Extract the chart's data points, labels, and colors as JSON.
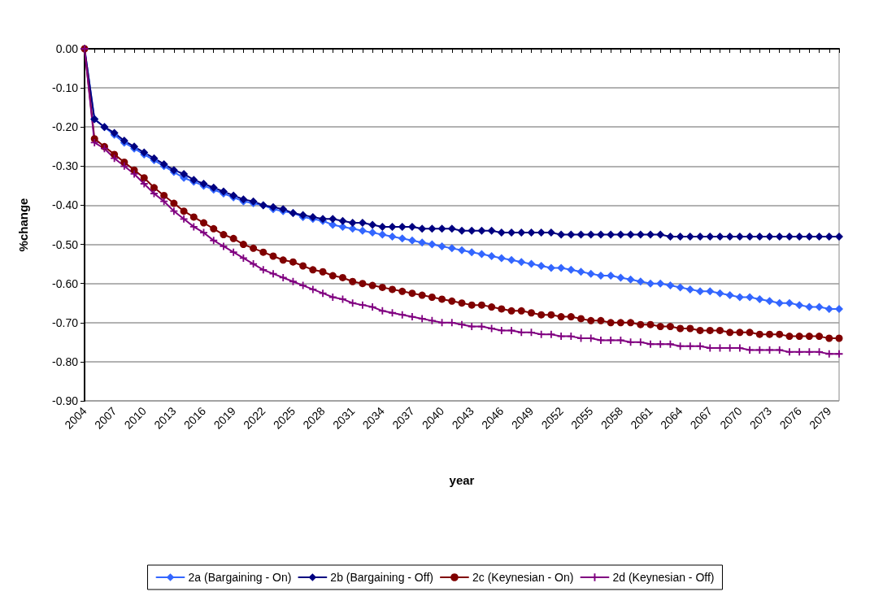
{
  "chart_data": {
    "type": "line",
    "xlabel": "year",
    "ylabel": "%change",
    "categories": [
      "2004",
      null,
      null,
      "2007",
      null,
      null,
      "2010",
      null,
      null,
      "2013",
      null,
      null,
      "2016",
      null,
      null,
      "2019",
      null,
      null,
      "2022",
      null,
      null,
      "2025",
      null,
      null,
      "2028",
      null,
      null,
      "2031",
      null,
      null,
      "2034",
      null,
      null,
      "2037",
      null,
      null,
      "2040",
      null,
      null,
      "2043",
      null,
      null,
      "2046",
      null,
      null,
      "2049",
      null,
      null,
      "2052",
      null,
      null,
      "2055",
      null,
      null,
      "2058",
      null,
      null,
      "2061",
      null,
      null,
      "2064",
      null,
      null,
      "2067",
      null,
      null,
      "2070",
      null,
      null,
      "2073",
      null,
      null,
      "2076",
      null,
      null,
      "2079",
      null
    ],
    "ylim": [
      -0.9,
      0
    ],
    "yticks": [
      {
        "value": 0,
        "label": "0.00"
      },
      {
        "value": -0.1,
        "label": "-0.10"
      },
      {
        "value": -0.2,
        "label": "-0.20"
      },
      {
        "value": -0.3,
        "label": "-0.30"
      },
      {
        "value": -0.4,
        "label": "-0.40"
      },
      {
        "value": -0.5,
        "label": "-0.50"
      },
      {
        "value": -0.6,
        "label": "-0.60"
      },
      {
        "value": -0.7,
        "label": "-0.70"
      },
      {
        "value": -0.8,
        "label": "-0.80"
      },
      {
        "value": -0.9,
        "label": "-0.90"
      }
    ],
    "grid": "y",
    "legend": "bottom",
    "line_style": "solid",
    "series": [
      {
        "name": "2a (Bargaining - On)",
        "color": "#3366ff",
        "marker": "diamond",
        "values": [
          0,
          -0.18,
          -0.2,
          -0.22,
          -0.24,
          -0.255,
          -0.27,
          -0.285,
          -0.3,
          -0.315,
          -0.33,
          -0.34,
          -0.35,
          -0.36,
          -0.37,
          -0.38,
          -0.39,
          -0.395,
          -0.4,
          -0.41,
          -0.415,
          -0.42,
          -0.43,
          -0.435,
          -0.44,
          -0.45,
          -0.455,
          -0.46,
          -0.465,
          -0.47,
          -0.475,
          -0.48,
          -0.485,
          -0.49,
          -0.495,
          -0.5,
          -0.505,
          -0.51,
          -0.515,
          -0.52,
          -0.525,
          -0.53,
          -0.535,
          -0.54,
          -0.545,
          -0.55,
          -0.555,
          -0.56,
          -0.56,
          -0.565,
          -0.57,
          -0.575,
          -0.58,
          -0.58,
          -0.585,
          -0.59,
          -0.595,
          -0.6,
          -0.6,
          -0.605,
          -0.61,
          -0.615,
          -0.62,
          -0.62,
          -0.625,
          -0.63,
          -0.635,
          -0.635,
          -0.64,
          -0.645,
          -0.65,
          -0.65,
          -0.655,
          -0.66,
          -0.66,
          -0.665,
          -0.665
        ]
      },
      {
        "name": "2b (Bargaining - Off)",
        "color": "#000080",
        "marker": "diamond",
        "values": [
          0,
          -0.18,
          -0.2,
          -0.215,
          -0.235,
          -0.25,
          -0.265,
          -0.28,
          -0.295,
          -0.31,
          -0.32,
          -0.335,
          -0.345,
          -0.355,
          -0.365,
          -0.375,
          -0.385,
          -0.39,
          -0.4,
          -0.405,
          -0.41,
          -0.42,
          -0.425,
          -0.43,
          -0.435,
          -0.435,
          -0.44,
          -0.445,
          -0.445,
          -0.45,
          -0.455,
          -0.455,
          -0.455,
          -0.455,
          -0.46,
          -0.46,
          -0.46,
          -0.46,
          -0.465,
          -0.465,
          -0.465,
          -0.465,
          -0.47,
          -0.47,
          -0.47,
          -0.47,
          -0.47,
          -0.47,
          -0.475,
          -0.475,
          -0.475,
          -0.475,
          -0.475,
          -0.475,
          -0.475,
          -0.475,
          -0.475,
          -0.475,
          -0.475,
          -0.48,
          -0.48,
          -0.48,
          -0.48,
          -0.48,
          -0.48,
          -0.48,
          -0.48,
          -0.48,
          -0.48,
          -0.48,
          -0.48,
          -0.48,
          -0.48,
          -0.48,
          -0.48,
          -0.48,
          -0.48
        ]
      },
      {
        "name": "2c (Keynesian - On)",
        "color": "#800000",
        "marker": "circle",
        "values": [
          0,
          -0.23,
          -0.25,
          -0.27,
          -0.29,
          -0.31,
          -0.33,
          -0.355,
          -0.375,
          -0.395,
          -0.415,
          -0.43,
          -0.445,
          -0.46,
          -0.475,
          -0.485,
          -0.5,
          -0.51,
          -0.52,
          -0.53,
          -0.54,
          -0.545,
          -0.555,
          -0.565,
          -0.57,
          -0.58,
          -0.585,
          -0.595,
          -0.6,
          -0.605,
          -0.61,
          -0.615,
          -0.62,
          -0.625,
          -0.63,
          -0.635,
          -0.64,
          -0.645,
          -0.65,
          -0.655,
          -0.655,
          -0.66,
          -0.665,
          -0.67,
          -0.67,
          -0.675,
          -0.68,
          -0.68,
          -0.685,
          -0.685,
          -0.69,
          -0.695,
          -0.695,
          -0.7,
          -0.7,
          -0.7,
          -0.705,
          -0.705,
          -0.71,
          -0.71,
          -0.715,
          -0.715,
          -0.72,
          -0.72,
          -0.72,
          -0.725,
          -0.725,
          -0.725,
          -0.73,
          -0.73,
          -0.73,
          -0.735,
          -0.735,
          -0.735,
          -0.735,
          -0.74,
          -0.74
        ]
      },
      {
        "name": "2d (Keynesian - Off)",
        "color": "#800080",
        "marker": "cross",
        "values": [
          0,
          -0.24,
          -0.255,
          -0.28,
          -0.3,
          -0.32,
          -0.345,
          -0.37,
          -0.39,
          -0.415,
          -0.435,
          -0.455,
          -0.47,
          -0.49,
          -0.505,
          -0.52,
          -0.535,
          -0.55,
          -0.565,
          -0.575,
          -0.585,
          -0.595,
          -0.605,
          -0.615,
          -0.625,
          -0.635,
          -0.64,
          -0.65,
          -0.655,
          -0.66,
          -0.67,
          -0.675,
          -0.68,
          -0.685,
          -0.69,
          -0.695,
          -0.7,
          -0.7,
          -0.705,
          -0.71,
          -0.71,
          -0.715,
          -0.72,
          -0.72,
          -0.725,
          -0.725,
          -0.73,
          -0.73,
          -0.735,
          -0.735,
          -0.74,
          -0.74,
          -0.745,
          -0.745,
          -0.745,
          -0.75,
          -0.75,
          -0.755,
          -0.755,
          -0.755,
          -0.76,
          -0.76,
          -0.76,
          -0.765,
          -0.765,
          -0.765,
          -0.765,
          -0.77,
          -0.77,
          -0.77,
          -0.77,
          -0.775,
          -0.775,
          -0.775,
          -0.775,
          -0.78,
          -0.78
        ]
      }
    ]
  }
}
